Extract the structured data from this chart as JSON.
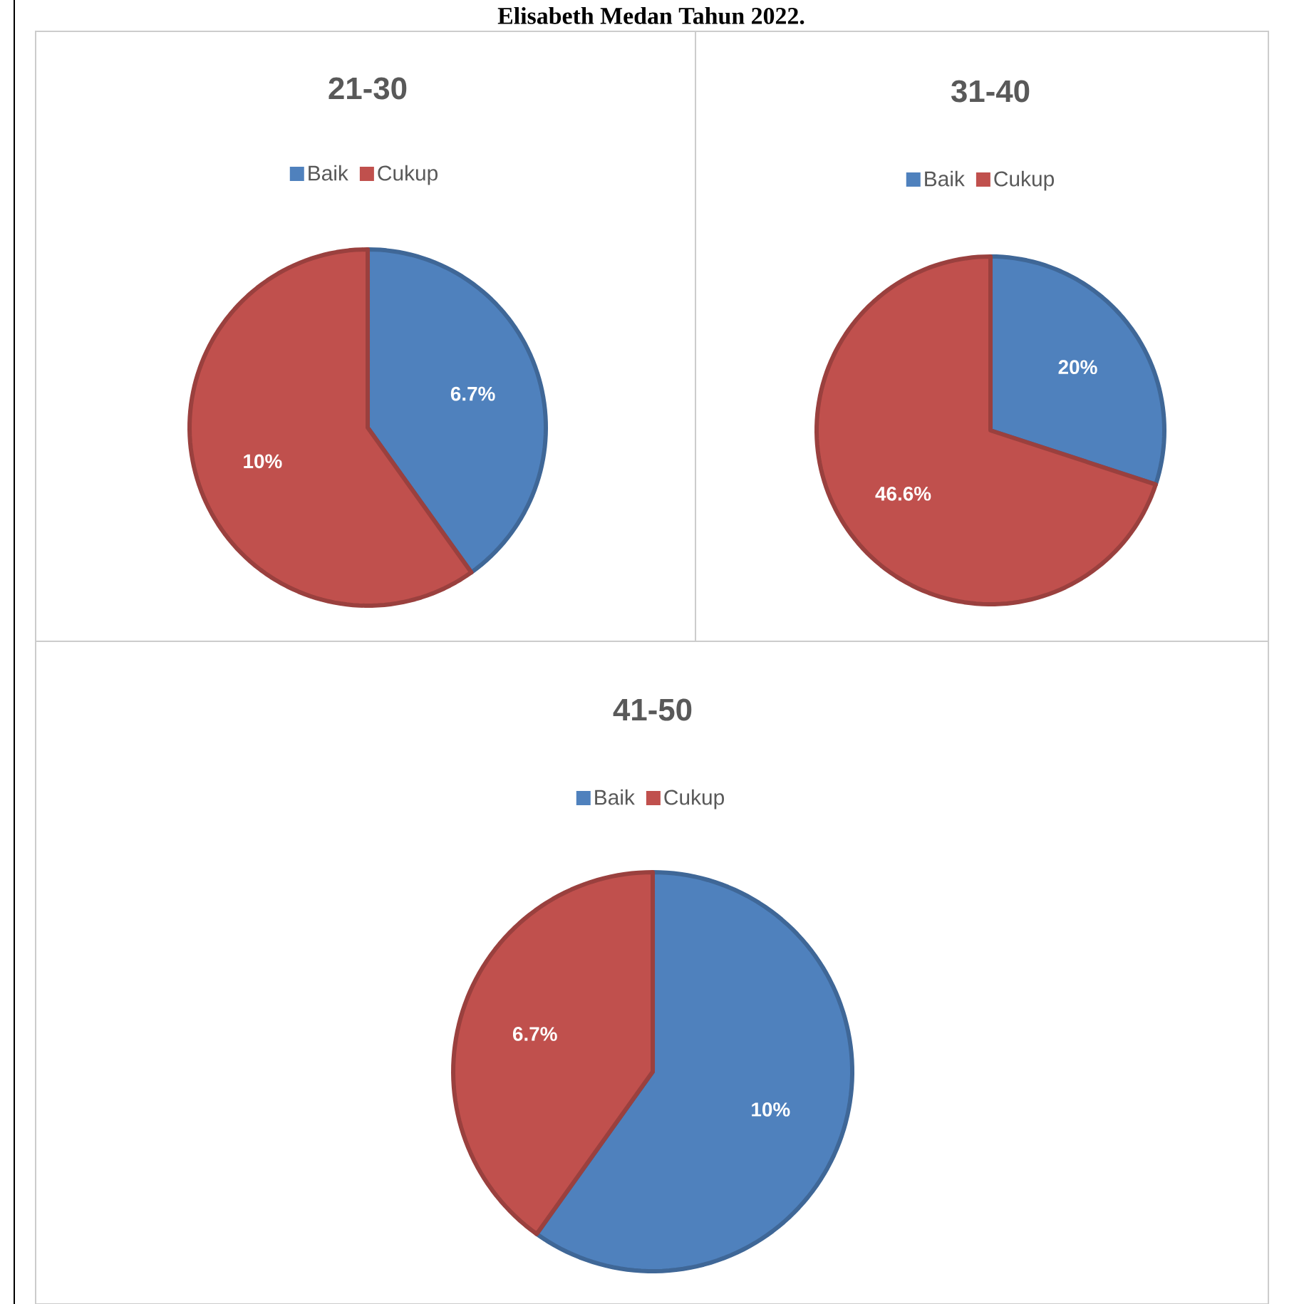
{
  "chart_data": [
    {
      "type": "pie",
      "title": "21-30",
      "categories": [
        "Baik",
        "Cukup"
      ],
      "values": [
        6.7,
        10
      ],
      "colors": [
        "#4f81bd",
        "#c0504d"
      ],
      "value_labels": [
        "6.7%",
        "10%"
      ],
      "legend": "top",
      "annotations": [
        "Elisabeth Medan Tahun 2022."
      ]
    },
    {
      "type": "pie",
      "title": "31-40",
      "categories": [
        "Baik",
        "Cukup"
      ],
      "values": [
        20,
        46.6
      ],
      "colors": [
        "#4f81bd",
        "#c0504d"
      ],
      "value_labels": [
        "20%",
        "46.6%"
      ],
      "legend": "top"
    },
    {
      "type": "pie",
      "title": "41-50",
      "categories": [
        "Baik",
        "Cukup"
      ],
      "values": [
        10,
        6.7
      ],
      "colors": [
        "#4f81bd",
        "#c0504d"
      ],
      "value_labels": [
        "10%",
        "6.7%"
      ],
      "legend": "top"
    }
  ]
}
